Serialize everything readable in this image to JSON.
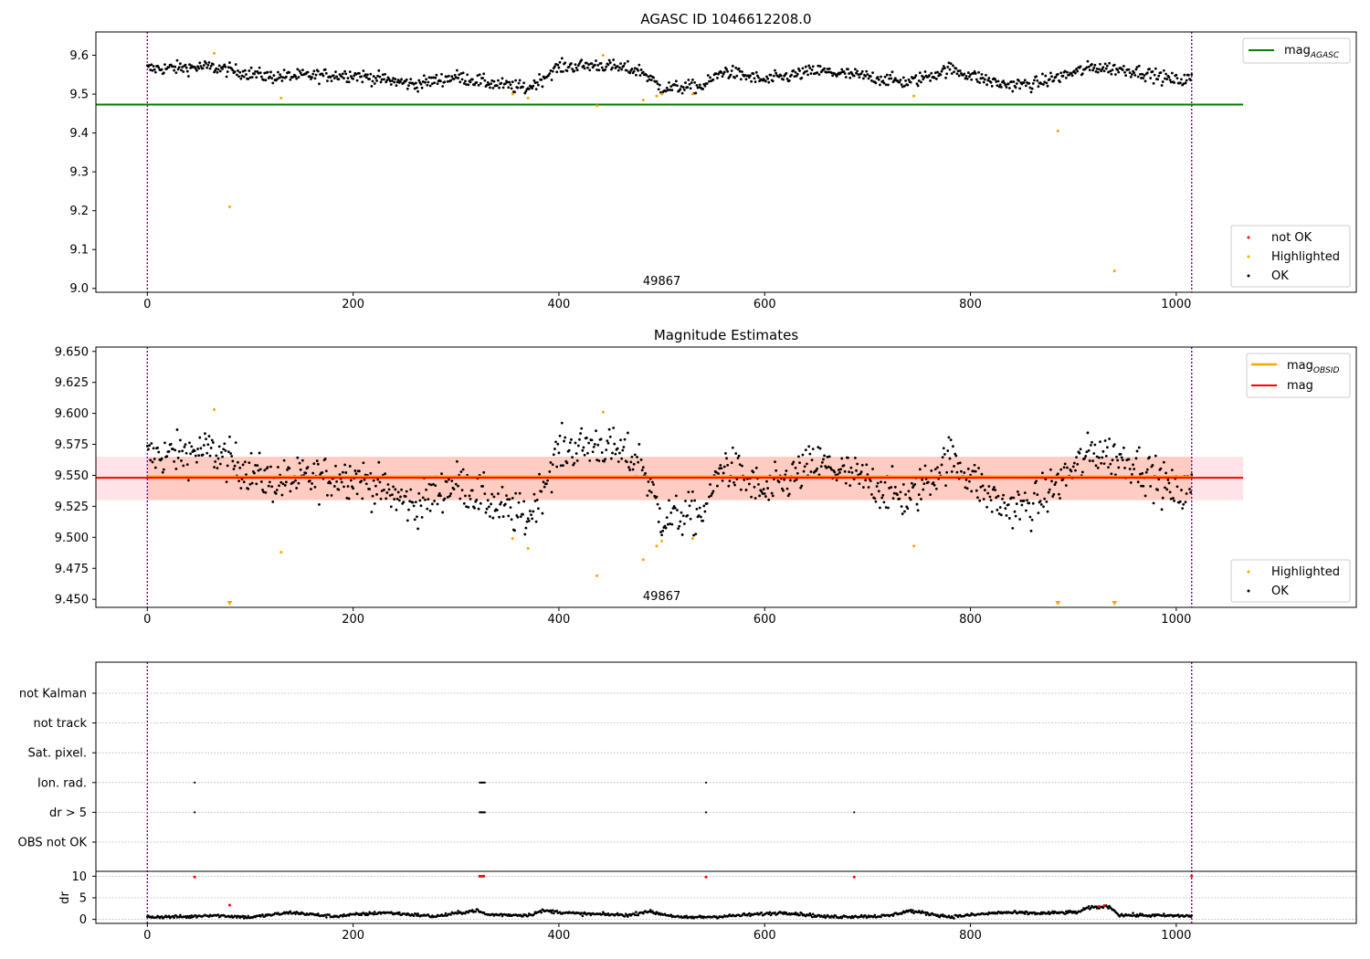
{
  "figure": {
    "title_top": "AGASC ID 1046612208.0",
    "title_middle": "Magnitude Estimates"
  },
  "chart_data": [
    {
      "type": "scatter",
      "title": "AGASC ID 1046612208.0",
      "xlim": [
        -50,
        1175
      ],
      "ylim": [
        8.99,
        9.66
      ],
      "xticks": [
        0,
        200,
        400,
        600,
        800,
        1000
      ],
      "yticks": [
        9.0,
        9.1,
        9.2,
        9.3,
        9.4,
        9.5,
        9.6
      ],
      "annotation": "49867",
      "vlines": [
        0,
        1015
      ],
      "hline": {
        "name": "mag_AGASC",
        "value": 9.473,
        "x_range": [
          -50,
          1065
        ],
        "color": "#008000"
      },
      "series": [
        {
          "name": "not OK",
          "color": "#ff0000",
          "points": []
        },
        {
          "name": "Highlighted",
          "color": "#ffa500",
          "points": [
            [
              65,
              9.605
            ],
            [
              80,
              9.21
            ],
            [
              130,
              9.49
            ],
            [
              355,
              9.5
            ],
            [
              370,
              9.49
            ],
            [
              437,
              9.47
            ],
            [
              443,
              9.6
            ],
            [
              482,
              9.485
            ],
            [
              495,
              9.495
            ],
            [
              500,
              9.5
            ],
            [
              530,
              9.5
            ],
            [
              745,
              9.495
            ],
            [
              885,
              9.405
            ],
            [
              940,
              9.045
            ]
          ]
        },
        {
          "name": "OK",
          "color": "#000000",
          "baseline": 9.548,
          "spread": 0.016,
          "x_range": [
            0,
            1015
          ],
          "trend": [
            [
              0,
              9.565
            ],
            [
              60,
              9.57
            ],
            [
              120,
              9.545
            ],
            [
              200,
              9.55
            ],
            [
              260,
              9.525
            ],
            [
              300,
              9.545
            ],
            [
              340,
              9.525
            ],
            [
              370,
              9.515
            ],
            [
              400,
              9.57
            ],
            [
              440,
              9.575
            ],
            [
              480,
              9.56
            ],
            [
              500,
              9.515
            ],
            [
              540,
              9.52
            ],
            [
              560,
              9.56
            ],
            [
              600,
              9.535
            ],
            [
              650,
              9.56
            ],
            [
              700,
              9.545
            ],
            [
              740,
              9.53
            ],
            [
              780,
              9.565
            ],
            [
              830,
              9.525
            ],
            [
              860,
              9.525
            ],
            [
              920,
              9.57
            ],
            [
              960,
              9.56
            ],
            [
              1000,
              9.535
            ],
            [
              1015,
              9.54
            ]
          ]
        }
      ],
      "legend_line": {
        "label": "mag",
        "sub": "AGASC",
        "placement": "upper right"
      },
      "legend_points": {
        "labels": [
          "not OK",
          "Highlighted",
          "OK"
        ],
        "placement": "lower right"
      }
    },
    {
      "type": "scatter",
      "title": "Magnitude Estimates",
      "xlim": [
        -50,
        1175
      ],
      "ylim": [
        9.4435,
        9.6535
      ],
      "xticks": [
        0,
        200,
        400,
        600,
        800,
        1000
      ],
      "yticks": [
        9.45,
        9.475,
        9.5,
        9.525,
        9.55,
        9.575,
        9.6,
        9.625,
        9.65
      ],
      "ytick_labels": [
        "9.450",
        "9.475",
        "9.500",
        "9.525",
        "9.550",
        "9.575",
        "9.600",
        "9.625",
        "9.650"
      ],
      "annotation": "49867",
      "vlines": [
        0,
        1015
      ],
      "band_mag": {
        "ymin": 9.53,
        "ymax": 9.565,
        "x_range": [
          -50,
          1065
        ],
        "color": "#ffc0cb"
      },
      "band_obsid": {
        "ymin": 9.53,
        "ymax": 9.565,
        "x_range": [
          0,
          1015
        ],
        "color": "#ffa07a"
      },
      "line_mag": {
        "name": "mag",
        "value": 9.548,
        "x_range": [
          -50,
          1065
        ],
        "color": "#ff0000"
      },
      "line_obsid": {
        "name": "mag_OBSID",
        "value": 9.549,
        "x_range": [
          0,
          1015
        ],
        "color": "#ffa500"
      },
      "highlighted": [
        [
          65,
          9.603
        ],
        [
          130,
          9.488
        ],
        [
          355,
          9.499
        ],
        [
          370,
          9.491
        ],
        [
          437,
          9.469
        ],
        [
          443,
          9.601
        ],
        [
          482,
          9.482
        ],
        [
          495,
          9.493
        ],
        [
          500,
          9.497
        ],
        [
          530,
          9.499
        ],
        [
          745,
          9.493
        ]
      ],
      "offscale_markers": [
        80,
        885,
        940
      ],
      "legend_lines": {
        "labels": [
          "mag",
          "mag"
        ],
        "sub": [
          "OBSID",
          ""
        ],
        "placement": "upper right"
      },
      "legend_points": {
        "labels": [
          "Highlighted",
          "OK"
        ],
        "placement": "lower right"
      }
    },
    {
      "type": "scatter",
      "xlim": [
        -50,
        1175
      ],
      "xticks": [
        0,
        200,
        400,
        600,
        800,
        1000
      ],
      "vlines": [
        0,
        1015
      ],
      "flag_categories": [
        "not Kalman",
        "not track",
        "Sat. pixel.",
        "Ion. rad.",
        "dr > 5",
        "OBS not OK"
      ],
      "flag_points": {
        "Ion. rad.": [
          46,
          323,
          324,
          325,
          326,
          327,
          328,
          543
        ],
        "dr > 5": [
          46,
          323,
          324,
          325,
          326,
          327,
          328,
          543,
          687
        ]
      },
      "dr_axis": {
        "label": "dr",
        "ylim": [
          -0.5,
          10.5
        ],
        "yticks": [
          0,
          5,
          10
        ]
      },
      "dr_red_points": [
        [
          46,
          9.8
        ],
        [
          80,
          3.3
        ],
        [
          323,
          10
        ],
        [
          325,
          10
        ],
        [
          327,
          10
        ],
        [
          543,
          9.8
        ],
        [
          687,
          9.8
        ],
        [
          925,
          3.0
        ],
        [
          930,
          3.2
        ],
        [
          1015,
          10
        ]
      ],
      "dr_trend": [
        [
          0,
          0.6
        ],
        [
          40,
          0.6
        ],
        [
          60,
          1.0
        ],
        [
          100,
          0.5
        ],
        [
          140,
          1.6
        ],
        [
          180,
          0.7
        ],
        [
          230,
          1.6
        ],
        [
          280,
          0.7
        ],
        [
          320,
          2.1
        ],
        [
          330,
          1.1
        ],
        [
          370,
          1.0
        ],
        [
          385,
          2.0
        ],
        [
          420,
          1.3
        ],
        [
          470,
          1.0
        ],
        [
          485,
          1.9
        ],
        [
          520,
          0.4
        ],
        [
          560,
          0.7
        ],
        [
          620,
          1.6
        ],
        [
          660,
          0.6
        ],
        [
          720,
          0.8
        ],
        [
          740,
          2.0
        ],
        [
          780,
          0.6
        ],
        [
          830,
          1.6
        ],
        [
          870,
          1.4
        ],
        [
          905,
          1.7
        ],
        [
          915,
          2.7
        ],
        [
          935,
          3.0
        ],
        [
          945,
          1.0
        ],
        [
          1015,
          0.8
        ]
      ]
    }
  ]
}
